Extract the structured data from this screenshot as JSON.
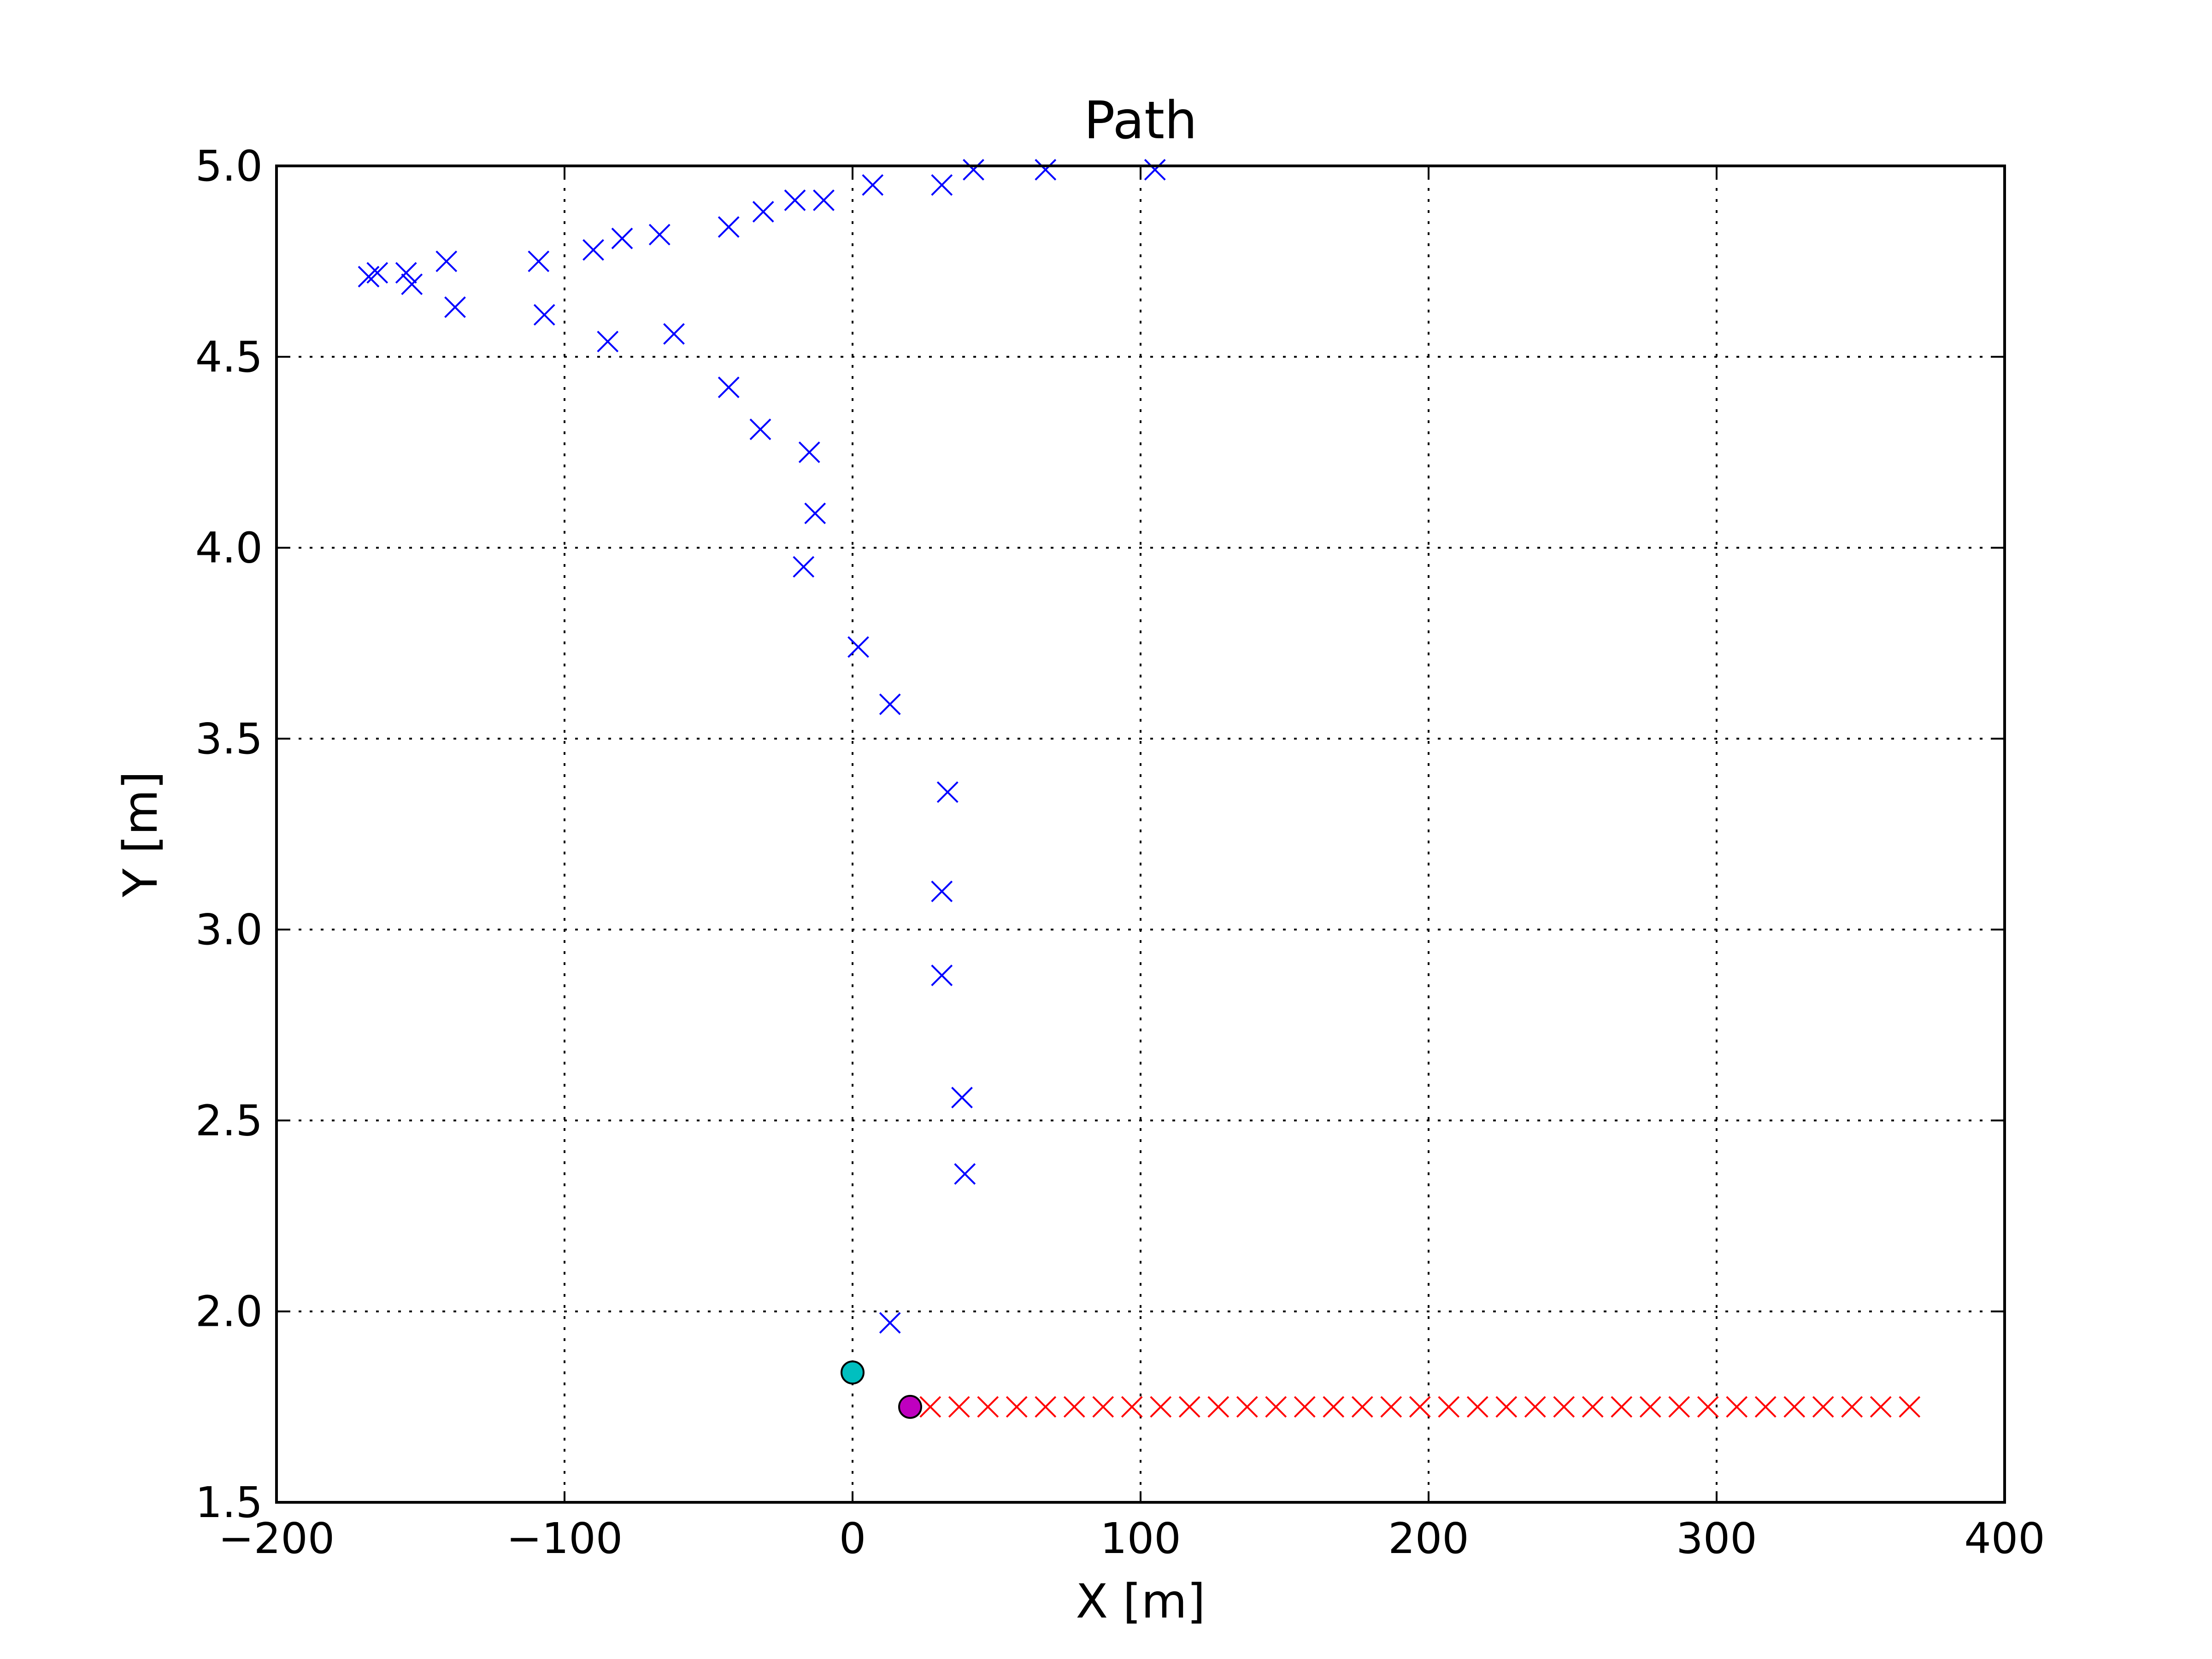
{
  "chart_data": {
    "type": "scatter",
    "title": "Path",
    "xlabel": "X [m]",
    "ylabel": "Y [m]",
    "xlim": [
      -200,
      400
    ],
    "ylim": [
      1.5,
      5.0
    ],
    "xticks": [
      -200,
      -100,
      0,
      100,
      200,
      300,
      400
    ],
    "yticks": [
      1.5,
      2.0,
      2.5,
      3.0,
      3.5,
      4.0,
      4.5,
      5.0
    ],
    "xtick_labels": [
      "−200",
      "−100",
      "0",
      "100",
      "200",
      "300",
      "400"
    ],
    "ytick_labels": [
      "1.5",
      "2.0",
      "2.5",
      "3.0",
      "3.5",
      "4.0",
      "4.5",
      "5.0"
    ],
    "grid": true,
    "series": [
      {
        "marker": "x",
        "color": "#0000ff",
        "points": [
          [
            -168,
            4.71
          ],
          [
            -165,
            4.72
          ],
          [
            -155,
            4.72
          ],
          [
            -153,
            4.69
          ],
          [
            -141,
            4.75
          ],
          [
            -138,
            4.63
          ],
          [
            -109,
            4.75
          ],
          [
            -107,
            4.61
          ],
          [
            -90,
            4.78
          ],
          [
            -85,
            4.54
          ],
          [
            -80,
            4.81
          ],
          [
            -67,
            4.82
          ],
          [
            -62,
            4.56
          ],
          [
            -43,
            4.84
          ],
          [
            -43,
            4.42
          ],
          [
            -32,
            4.31
          ],
          [
            -31,
            4.88
          ],
          [
            -20,
            4.91
          ],
          [
            -15,
            4.25
          ],
          [
            -13,
            4.09
          ],
          [
            -10,
            4.91
          ],
          [
            -17,
            3.95
          ],
          [
            2,
            3.74
          ],
          [
            7,
            4.95
          ],
          [
            13,
            3.59
          ],
          [
            31,
            4.95
          ],
          [
            33,
            3.36
          ],
          [
            31,
            3.1
          ],
          [
            31,
            2.88
          ],
          [
            38,
            2.56
          ],
          [
            39,
            2.36
          ],
          [
            42,
            4.99
          ],
          [
            67,
            4.99
          ],
          [
            105,
            4.99
          ],
          [
            13,
            1.97
          ]
        ]
      },
      {
        "marker": "x",
        "color": "#ff0000",
        "points": [
          [
            27,
            1.75
          ],
          [
            37,
            1.75
          ],
          [
            47,
            1.75
          ],
          [
            57,
            1.75
          ],
          [
            67,
            1.75
          ],
          [
            77,
            1.75
          ],
          [
            87,
            1.75
          ],
          [
            97,
            1.75
          ],
          [
            107,
            1.75
          ],
          [
            117,
            1.75
          ],
          [
            127,
            1.75
          ],
          [
            137,
            1.75
          ],
          [
            147,
            1.75
          ],
          [
            157,
            1.75
          ],
          [
            167,
            1.75
          ],
          [
            177,
            1.75
          ],
          [
            187,
            1.75
          ],
          [
            197,
            1.75
          ],
          [
            207,
            1.75
          ],
          [
            217,
            1.75
          ],
          [
            227,
            1.75
          ],
          [
            237,
            1.75
          ],
          [
            247,
            1.75
          ],
          [
            257,
            1.75
          ],
          [
            267,
            1.75
          ],
          [
            277,
            1.75
          ],
          [
            287,
            1.75
          ],
          [
            297,
            1.75
          ],
          [
            307,
            1.75
          ],
          [
            317,
            1.75
          ],
          [
            327,
            1.75
          ],
          [
            337,
            1.75
          ],
          [
            347,
            1.75
          ],
          [
            357,
            1.75
          ],
          [
            367,
            1.75
          ]
        ]
      },
      {
        "marker": "circle",
        "color": "#00bfbf",
        "points": [
          [
            0,
            1.84
          ]
        ]
      },
      {
        "marker": "circle",
        "color": "#bf00bf",
        "points": [
          [
            20,
            1.75
          ]
        ]
      }
    ]
  }
}
